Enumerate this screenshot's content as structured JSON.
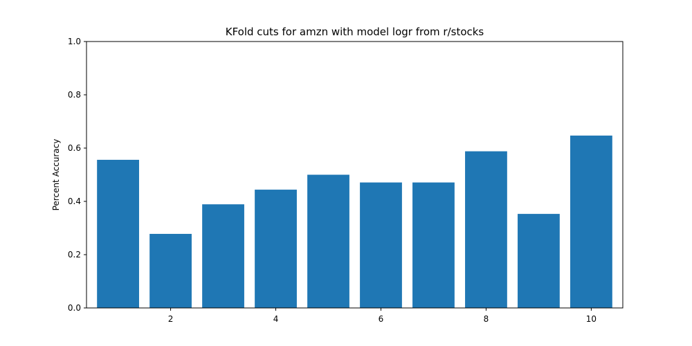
{
  "chart_data": {
    "type": "bar",
    "title": "KFold cuts for amzn with model logr from r/stocks",
    "xlabel": "",
    "ylabel": "Percent Accuracy",
    "x": [
      1,
      2,
      3,
      4,
      5,
      6,
      7,
      8,
      9,
      10
    ],
    "values": [
      0.556,
      0.278,
      0.389,
      0.444,
      0.5,
      0.471,
      0.471,
      0.588,
      0.353,
      0.647
    ],
    "xlim": [
      0.4,
      10.6
    ],
    "ylim": [
      0,
      1.0
    ],
    "xticks": [
      2,
      4,
      6,
      8,
      10
    ],
    "xtick_labels": [
      "2",
      "4",
      "6",
      "8",
      "10"
    ],
    "yticks": [
      0.0,
      0.2,
      0.4,
      0.6,
      0.8,
      1.0
    ],
    "ytick_labels": [
      "0.0",
      "0.2",
      "0.4",
      "0.6",
      "0.8",
      "1.0"
    ],
    "grid": false,
    "bar_color": "#1f77b4"
  }
}
